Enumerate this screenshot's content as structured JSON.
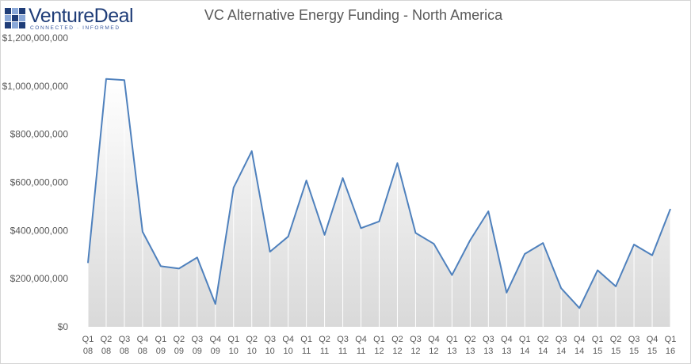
{
  "logo": {
    "name": "VentureDeal",
    "tagline": "CONNECTED · INFORMED",
    "colors": {
      "dark": "#1f3d78",
      "light": "#8aa8d8"
    }
  },
  "chart_data": {
    "type": "area",
    "title": "VC Alternative  Energy Funding - North America",
    "xlabel": "",
    "ylabel": "",
    "ylim": [
      0,
      1200000000
    ],
    "yticks": [
      {
        "value": 0,
        "label": "$0"
      },
      {
        "value": 200000000,
        "label": "$200,000,000"
      },
      {
        "value": 400000000,
        "label": "$400,000,000"
      },
      {
        "value": 600000000,
        "label": "$600,000,000"
      },
      {
        "value": 800000000,
        "label": "$800,000,000"
      },
      {
        "value": 1000000000,
        "label": "$1,000,000,000"
      },
      {
        "value": 1200000000,
        "label": "$1,200,000,000"
      }
    ],
    "grid": false,
    "legend": "none",
    "line_color": "#4f81bd",
    "categories": [
      [
        "Q1",
        "08"
      ],
      [
        "Q2",
        "08"
      ],
      [
        "Q3",
        "08"
      ],
      [
        "Q4",
        "08"
      ],
      [
        "Q1",
        "09"
      ],
      [
        "Q2",
        "09"
      ],
      [
        "Q3",
        "09"
      ],
      [
        "Q4",
        "09"
      ],
      [
        "Q1",
        "10"
      ],
      [
        "Q2",
        "10"
      ],
      [
        "Q3",
        "10"
      ],
      [
        "Q4",
        "10"
      ],
      [
        "Q1",
        "11"
      ],
      [
        "Q2",
        "11"
      ],
      [
        "Q3",
        "11"
      ],
      [
        "Q4",
        "11"
      ],
      [
        "Q1",
        "12"
      ],
      [
        "Q2",
        "12"
      ],
      [
        "Q3",
        "12"
      ],
      [
        "Q4",
        "12"
      ],
      [
        "Q1",
        "13"
      ],
      [
        "Q2",
        "13"
      ],
      [
        "Q3",
        "13"
      ],
      [
        "Q4",
        "13"
      ],
      [
        "Q1",
        "14"
      ],
      [
        "Q2",
        "14"
      ],
      [
        "Q3",
        "14"
      ],
      [
        "Q4",
        "14"
      ],
      [
        "Q1",
        "15"
      ],
      [
        "Q2",
        "15"
      ],
      [
        "Q3",
        "15"
      ],
      [
        "Q4",
        "15"
      ],
      [
        "Q1",
        "16"
      ]
    ],
    "values": [
      265000000,
      1030000000,
      1025000000,
      395000000,
      252000000,
      242000000,
      288000000,
      95000000,
      578000000,
      730000000,
      312000000,
      375000000,
      608000000,
      382000000,
      618000000,
      410000000,
      438000000,
      680000000,
      390000000,
      345000000,
      215000000,
      360000000,
      480000000,
      142000000,
      303000000,
      348000000,
      160000000,
      78000000,
      235000000,
      168000000,
      342000000,
      297000000,
      490000000
    ]
  }
}
